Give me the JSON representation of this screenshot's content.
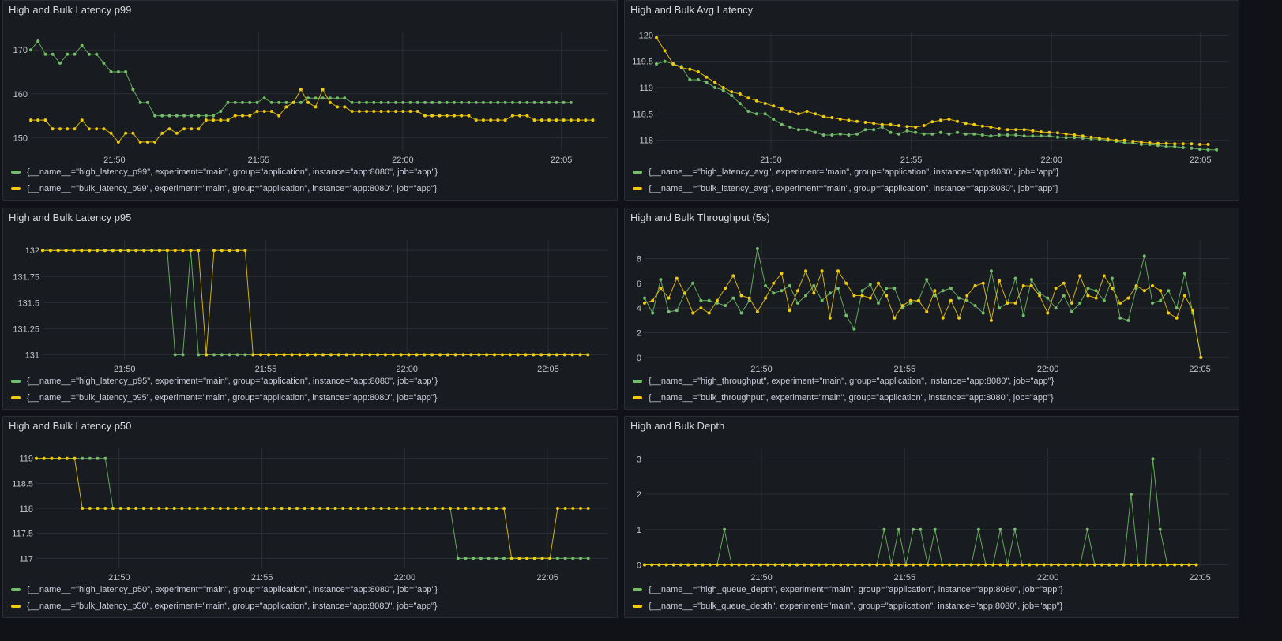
{
  "colors": {
    "green": "#73bf69",
    "yellow": "#f2cc0c",
    "grid": "#2b2e35",
    "tick": "#c3c5cb"
  },
  "x_ticks": [
    "21:50",
    "21:55",
    "22:00",
    "22:05"
  ],
  "chart_data": [
    {
      "id": "p99",
      "type": "line",
      "title": "High and Bulk Latency p99",
      "y_ticks": [
        "150",
        "160",
        "170"
      ],
      "series": [
        {
          "name": "{__name__=\"high_latency_p99\", experiment=\"main\", group=\"application\", instance=\"app:8080\", job=\"app\"}",
          "color": "green",
          "values": [
            170,
            172,
            169,
            169,
            167,
            169,
            169,
            171,
            169,
            169,
            167,
            165,
            165,
            165,
            161,
            158,
            158,
            155,
            155,
            155,
            155,
            155,
            155,
            155,
            155,
            155,
            156,
            158,
            158,
            158,
            158,
            158,
            159,
            158,
            158,
            158,
            158,
            158,
            159,
            159,
            159,
            159,
            159,
            159,
            158,
            158,
            158,
            158,
            158,
            158,
            158,
            158,
            158,
            158,
            158,
            158,
            158,
            158,
            158,
            158,
            158,
            158,
            158,
            158,
            158,
            158,
            158,
            158,
            158,
            158,
            158,
            158,
            158,
            158,
            158
          ]
        },
        {
          "name": "{__name__=\"bulk_latency_p99\", experiment=\"main\", group=\"application\", instance=\"app:8080\", job=\"app\"}",
          "color": "yellow",
          "values": [
            154,
            154,
            154,
            152,
            152,
            152,
            152,
            154,
            152,
            152,
            152,
            151,
            149,
            151,
            151,
            149,
            149,
            149,
            151,
            152,
            151,
            152,
            152,
            152,
            154,
            154,
            154,
            154,
            155,
            155,
            155,
            156,
            156,
            156,
            155,
            157,
            158,
            161,
            158,
            157,
            161,
            158,
            157,
            157,
            156,
            156,
            156,
            156,
            156,
            156,
            156,
            156,
            156,
            156,
            155,
            155,
            155,
            155,
            155,
            155,
            155,
            154,
            154,
            154,
            154,
            154,
            155,
            155,
            155,
            154,
            154,
            154,
            154,
            154,
            154,
            154,
            154,
            154
          ]
        }
      ]
    },
    {
      "id": "avg",
      "type": "line",
      "title": "High and Bulk Avg Latency",
      "y_ticks": [
        "118",
        "118.5",
        "119",
        "119.5",
        "120"
      ],
      "series": [
        {
          "name": "{__name__=\"high_latency_avg\", experiment=\"main\", group=\"application\", instance=\"app:8080\", job=\"app\"}",
          "color": "green",
          "values": [
            119.45,
            119.5,
            119.45,
            119.4,
            119.15,
            119.15,
            119.1,
            119,
            118.95,
            118.85,
            118.7,
            118.55,
            118.5,
            118.5,
            118.4,
            118.3,
            118.25,
            118.2,
            118.2,
            118.15,
            118.1,
            118.1,
            118.12,
            118.1,
            118.12,
            118.2,
            118.2,
            118.25,
            118.15,
            118.12,
            118.18,
            118.15,
            118.12,
            118.12,
            118.15,
            118.12,
            118.15,
            118.12,
            118.12,
            118.1,
            118.08,
            118.1,
            118.1,
            118.1,
            118.08,
            118.08,
            118.08,
            118.08,
            118.06,
            118.05,
            118.05,
            118.04,
            118.03,
            118.02,
            118.0,
            117.98,
            117.95,
            117.95,
            117.92,
            117.92,
            117.9,
            117.88,
            117.88,
            117.86,
            117.85,
            117.83,
            117.82,
            117.82
          ]
        },
        {
          "name": "{__name__=\"bulk_latency_avg\", experiment=\"main\", group=\"application\", instance=\"app:8080\", job=\"app\"}",
          "color": "yellow",
          "values": [
            119.95,
            119.7,
            119.45,
            119.38,
            119.35,
            119.3,
            119.2,
            119.1,
            119.0,
            118.92,
            118.88,
            118.8,
            118.75,
            118.7,
            118.65,
            118.6,
            118.55,
            118.5,
            118.55,
            118.5,
            118.45,
            118.43,
            118.4,
            118.38,
            118.36,
            118.34,
            118.32,
            118.3,
            118.3,
            118.28,
            118.26,
            118.25,
            118.28,
            118.35,
            118.38,
            118.4,
            118.36,
            118.32,
            118.3,
            118.27,
            118.25,
            118.22,
            118.2,
            118.2,
            118.2,
            118.18,
            118.16,
            118.15,
            118.14,
            118.12,
            118.1,
            118.08,
            118.06,
            118.04,
            118.02,
            118.0,
            118.0,
            117.98,
            117.96,
            117.95,
            117.94,
            117.94,
            117.93,
            117.93,
            117.93,
            117.92,
            117.92
          ]
        }
      ]
    },
    {
      "id": "p95",
      "type": "line",
      "title": "High and Bulk Latency p95",
      "y_ticks": [
        "131",
        "131.25",
        "131.5",
        "131.75",
        "132"
      ],
      "series": [
        {
          "name": "{__name__=\"high_latency_p95\", experiment=\"main\", group=\"application\", instance=\"app:8080\", job=\"app\"}",
          "color": "green",
          "values": [
            132,
            132,
            132,
            132,
            132,
            132,
            132,
            132,
            132,
            132,
            132,
            132,
            132,
            132,
            132,
            132,
            132,
            131,
            131,
            132,
            131,
            131,
            131,
            131,
            131,
            131,
            131,
            131,
            131,
            131,
            131,
            131,
            131,
            131,
            131,
            131,
            131,
            131,
            131,
            131,
            131,
            131,
            131,
            131,
            131,
            131,
            131,
            131,
            131,
            131,
            131,
            131,
            131,
            131,
            131,
            131,
            131,
            131,
            131,
            131,
            131,
            131,
            131,
            131,
            131,
            131,
            131,
            131,
            131,
            131
          ]
        },
        {
          "name": "{__name__=\"bulk_latency_p95\", experiment=\"main\", group=\"application\", instance=\"app:8080\", job=\"app\"}",
          "color": "yellow",
          "values": [
            132,
            132,
            132,
            132,
            132,
            132,
            132,
            132,
            132,
            132,
            132,
            132,
            132,
            132,
            132,
            132,
            132,
            132,
            132,
            132,
            132,
            131,
            132,
            132,
            132,
            132,
            132,
            131,
            131,
            131,
            131,
            131,
            131,
            131,
            131,
            131,
            131,
            131,
            131,
            131,
            131,
            131,
            131,
            131,
            131,
            131,
            131,
            131,
            131,
            131,
            131,
            131,
            131,
            131,
            131,
            131,
            131,
            131,
            131,
            131,
            131,
            131,
            131,
            131,
            131,
            131,
            131,
            131,
            131,
            131,
            131
          ]
        }
      ]
    },
    {
      "id": "tput",
      "type": "line",
      "title": "High and Bulk Throughput (5s)",
      "y_ticks": [
        "0",
        "2",
        "4",
        "6",
        "8"
      ],
      "series": [
        {
          "name": "{__name__=\"high_throughput\", experiment=\"main\", group=\"application\", instance=\"app:8080\", job=\"app\"}",
          "color": "green",
          "values": [
            4.8,
            3.6,
            6.3,
            3.7,
            3.8,
            5.2,
            6.0,
            4.6,
            4.6,
            4.4,
            4.2,
            4.8,
            3.6,
            4.6,
            8.8,
            5.8,
            5.2,
            5.4,
            5.8,
            4.4,
            5.0,
            5.8,
            4.6,
            5.2,
            5.6,
            3.4,
            2.3,
            5.4,
            5.9,
            4.4,
            5.6,
            5.6,
            4.0,
            4.4,
            4.6,
            6.3,
            5.0,
            5.4,
            5.6,
            4.8,
            4.6,
            4.2,
            3.6,
            7.0,
            4.0,
            4.4,
            6.4,
            3.4,
            6.3,
            5.2,
            4.8,
            4.0,
            5.0,
            3.7,
            4.4,
            5.6,
            5.4,
            4.6,
            6.4,
            3.2,
            3.0,
            5.6,
            8.2,
            4.4,
            4.6,
            5.4,
            4.0,
            6.8,
            3.6,
            0.0
          ]
        },
        {
          "name": "{__name__=\"bulk_throughput\", experiment=\"main\", group=\"application\", instance=\"app:8080\", job=\"app\"}",
          "color": "yellow",
          "values": [
            4.4,
            4.6,
            5.6,
            4.8,
            6.4,
            5.2,
            3.6,
            4.0,
            3.6,
            4.6,
            5.6,
            6.6,
            5.0,
            4.8,
            3.7,
            4.8,
            6.0,
            6.8,
            3.8,
            5.4,
            7.0,
            5.2,
            7.0,
            3.2,
            7.0,
            6.0,
            5.0,
            5.0,
            4.8,
            6.0,
            5.0,
            3.2,
            4.2,
            4.6,
            4.6,
            3.7,
            5.4,
            3.2,
            4.6,
            3.2,
            5.0,
            5.8,
            6.0,
            3.0,
            6.2,
            4.4,
            4.4,
            5.8,
            5.8,
            5.0,
            3.6,
            5.6,
            6.0,
            4.4,
            6.6,
            5.0,
            4.8,
            6.6,
            5.6,
            4.4,
            4.8,
            5.8,
            5.4,
            5.8,
            5.4,
            3.6,
            3.2,
            5.0,
            3.8,
            0.0
          ]
        }
      ]
    },
    {
      "id": "p50",
      "type": "line",
      "title": "High and Bulk Latency p50",
      "y_ticks": [
        "117",
        "117.5",
        "118",
        "118.5",
        "119"
      ],
      "series": [
        {
          "name": "{__name__=\"high_latency_p50\", experiment=\"main\", group=\"application\", instance=\"app:8080\", job=\"app\"}",
          "color": "green",
          "values": [
            119,
            119,
            119,
            119,
            119,
            119,
            119,
            119,
            119,
            119,
            118,
            118,
            118,
            118,
            118,
            118,
            118,
            118,
            118,
            118,
            118,
            118,
            118,
            118,
            118,
            118,
            118,
            118,
            118,
            118,
            118,
            118,
            118,
            118,
            118,
            118,
            118,
            118,
            118,
            118,
            118,
            118,
            118,
            118,
            118,
            118,
            118,
            118,
            118,
            118,
            118,
            118,
            118,
            118,
            118,
            117,
            117,
            117,
            117,
            117,
            117,
            117,
            117,
            117,
            117,
            117,
            117,
            117,
            117,
            117,
            117,
            117,
            117
          ]
        },
        {
          "name": "{__name__=\"bulk_latency_p50\", experiment=\"main\", group=\"application\", instance=\"app:8080\", job=\"app\"}",
          "color": "yellow",
          "values": [
            119,
            119,
            119,
            119,
            119,
            119,
            118,
            118,
            118,
            118,
            118,
            118,
            118,
            118,
            118,
            118,
            118,
            118,
            118,
            118,
            118,
            118,
            118,
            118,
            118,
            118,
            118,
            118,
            118,
            118,
            118,
            118,
            118,
            118,
            118,
            118,
            118,
            118,
            118,
            118,
            118,
            118,
            118,
            118,
            118,
            118,
            118,
            118,
            118,
            118,
            118,
            118,
            118,
            118,
            118,
            118,
            118,
            118,
            118,
            118,
            118,
            118,
            117,
            117,
            117,
            117,
            117,
            117,
            118,
            118,
            118,
            118,
            118
          ]
        }
      ]
    },
    {
      "id": "depth",
      "type": "line",
      "title": "High and Bulk Depth",
      "y_ticks": [
        "0",
        "1",
        "2",
        "3"
      ],
      "series": [
        {
          "name": "{__name__=\"high_queue_depth\", experiment=\"main\", group=\"application\", instance=\"app:8080\", job=\"app\"}",
          "color": "green",
          "values": [
            0,
            0,
            0,
            0,
            0,
            0,
            0,
            0,
            0,
            0,
            0,
            1,
            0,
            0,
            0,
            0,
            0,
            0,
            0,
            0,
            0,
            0,
            0,
            0,
            0,
            0,
            0,
            0,
            0,
            0,
            0,
            0,
            0,
            1,
            0,
            1,
            0,
            1,
            1,
            0,
            1,
            0,
            0,
            0,
            0,
            0,
            1,
            0,
            0,
            1,
            0,
            1,
            0,
            0,
            0,
            0,
            0,
            0,
            0,
            0,
            0,
            1,
            0,
            0,
            0,
            0,
            0,
            2,
            0,
            0,
            3,
            1,
            0,
            0,
            0,
            0,
            0
          ]
        },
        {
          "name": "{__name__=\"bulk_queue_depth\", experiment=\"main\", group=\"application\", instance=\"app:8080\", job=\"app\"}",
          "color": "yellow",
          "values": [
            0,
            0,
            0,
            0,
            0,
            0,
            0,
            0,
            0,
            0,
            0,
            0,
            0,
            0,
            0,
            0,
            0,
            0,
            0,
            0,
            0,
            0,
            0,
            0,
            0,
            0,
            0,
            0,
            0,
            0,
            0,
            0,
            0,
            0,
            0,
            0,
            0,
            0,
            0,
            0,
            0,
            0,
            0,
            0,
            0,
            0,
            0,
            0,
            0,
            0,
            0,
            0,
            0,
            0,
            0,
            0,
            0,
            0,
            0,
            0,
            0,
            0,
            0,
            0,
            0,
            0,
            0,
            0,
            0,
            0,
            0,
            0,
            0,
            0,
            0,
            0,
            0
          ]
        }
      ]
    }
  ]
}
